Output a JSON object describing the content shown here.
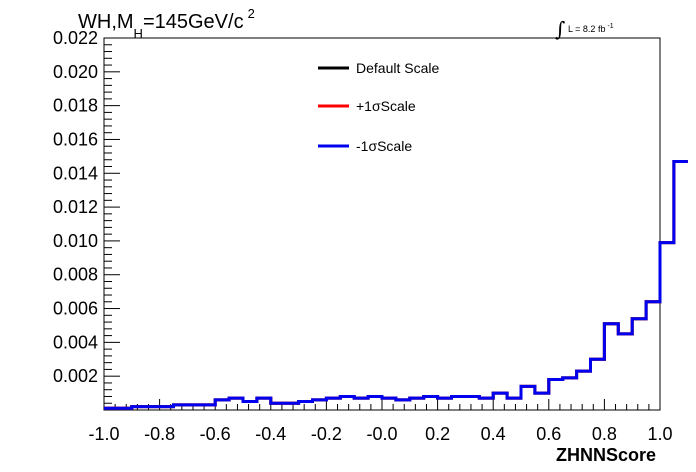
{
  "chart_data": {
    "type": "histogram",
    "title": {
      "prefix": "WH,M",
      "subscript": "H",
      "value": "=145GeV/c",
      "superscript": "2"
    },
    "luminosity": {
      "integral_symbol": "∫",
      "text": "L = 8.2 fb",
      "superscript": "-1"
    },
    "xlabel": "ZHNNScore",
    "ylabel": "",
    "xlim": [
      -1.0,
      1.0
    ],
    "ylim": [
      0,
      0.022
    ],
    "x_ticks": [
      "-1.0",
      "-0.8",
      "-0.6",
      "-0.4",
      "-0.2",
      "-0.0",
      "0.2",
      "0.4",
      "0.6",
      "0.8",
      "1.0"
    ],
    "y_ticks": [
      "0.002",
      "0.004",
      "0.006",
      "0.008",
      "0.010",
      "0.012",
      "0.014",
      "0.016",
      "0.018",
      "0.020",
      "0.022"
    ],
    "bin_edges_start": -1.0,
    "bin_width": 0.05,
    "series": [
      {
        "name": "Default Scale",
        "color": "#000000",
        "values": [
          0.0001,
          0.0001,
          0.0002,
          0.0002,
          0.0002,
          0.0003,
          0.0003,
          0.0003,
          0.0006,
          0.0007,
          0.0005,
          0.0007,
          0.0004,
          0.0004,
          0.0005,
          0.0006,
          0.0007,
          0.0008,
          0.0007,
          0.0008,
          0.0007,
          0.0006,
          0.0007,
          0.0008,
          0.0007,
          0.0008,
          0.0008,
          0.0007,
          0.001,
          0.0007,
          0.0014,
          0.001,
          0.0018,
          0.0019,
          0.0023,
          0.003,
          0.0051,
          0.0045,
          0.0054,
          0.0064,
          0.0099,
          0.0147
        ]
      },
      {
        "name": "+1σScale",
        "color": "#ff0000",
        "values": [
          0.0001,
          0.0001,
          0.0002,
          0.0002,
          0.0002,
          0.0003,
          0.0003,
          0.0003,
          0.0006,
          0.0007,
          0.0005,
          0.0007,
          0.0004,
          0.0004,
          0.0005,
          0.0006,
          0.0007,
          0.0008,
          0.0007,
          0.0008,
          0.0007,
          0.0006,
          0.0007,
          0.0008,
          0.0007,
          0.0008,
          0.0008,
          0.0007,
          0.001,
          0.0007,
          0.0014,
          0.001,
          0.0018,
          0.0019,
          0.0023,
          0.003,
          0.0051,
          0.0045,
          0.0054,
          0.0064,
          0.0099,
          0.0147
        ]
      },
      {
        "name": "-1σScale",
        "color": "#0000ee",
        "values": [
          0.0001,
          0.0001,
          0.0002,
          0.0002,
          0.0002,
          0.0003,
          0.0003,
          0.0003,
          0.0006,
          0.0007,
          0.0005,
          0.0007,
          0.0004,
          0.0004,
          0.0005,
          0.0006,
          0.0007,
          0.0008,
          0.0007,
          0.0008,
          0.0007,
          0.0006,
          0.0007,
          0.0008,
          0.0007,
          0.0008,
          0.0008,
          0.0007,
          0.001,
          0.0007,
          0.0014,
          0.001,
          0.0018,
          0.0019,
          0.0023,
          0.003,
          0.0051,
          0.0045,
          0.0054,
          0.0064,
          0.0099,
          0.0147
        ]
      }
    ]
  }
}
